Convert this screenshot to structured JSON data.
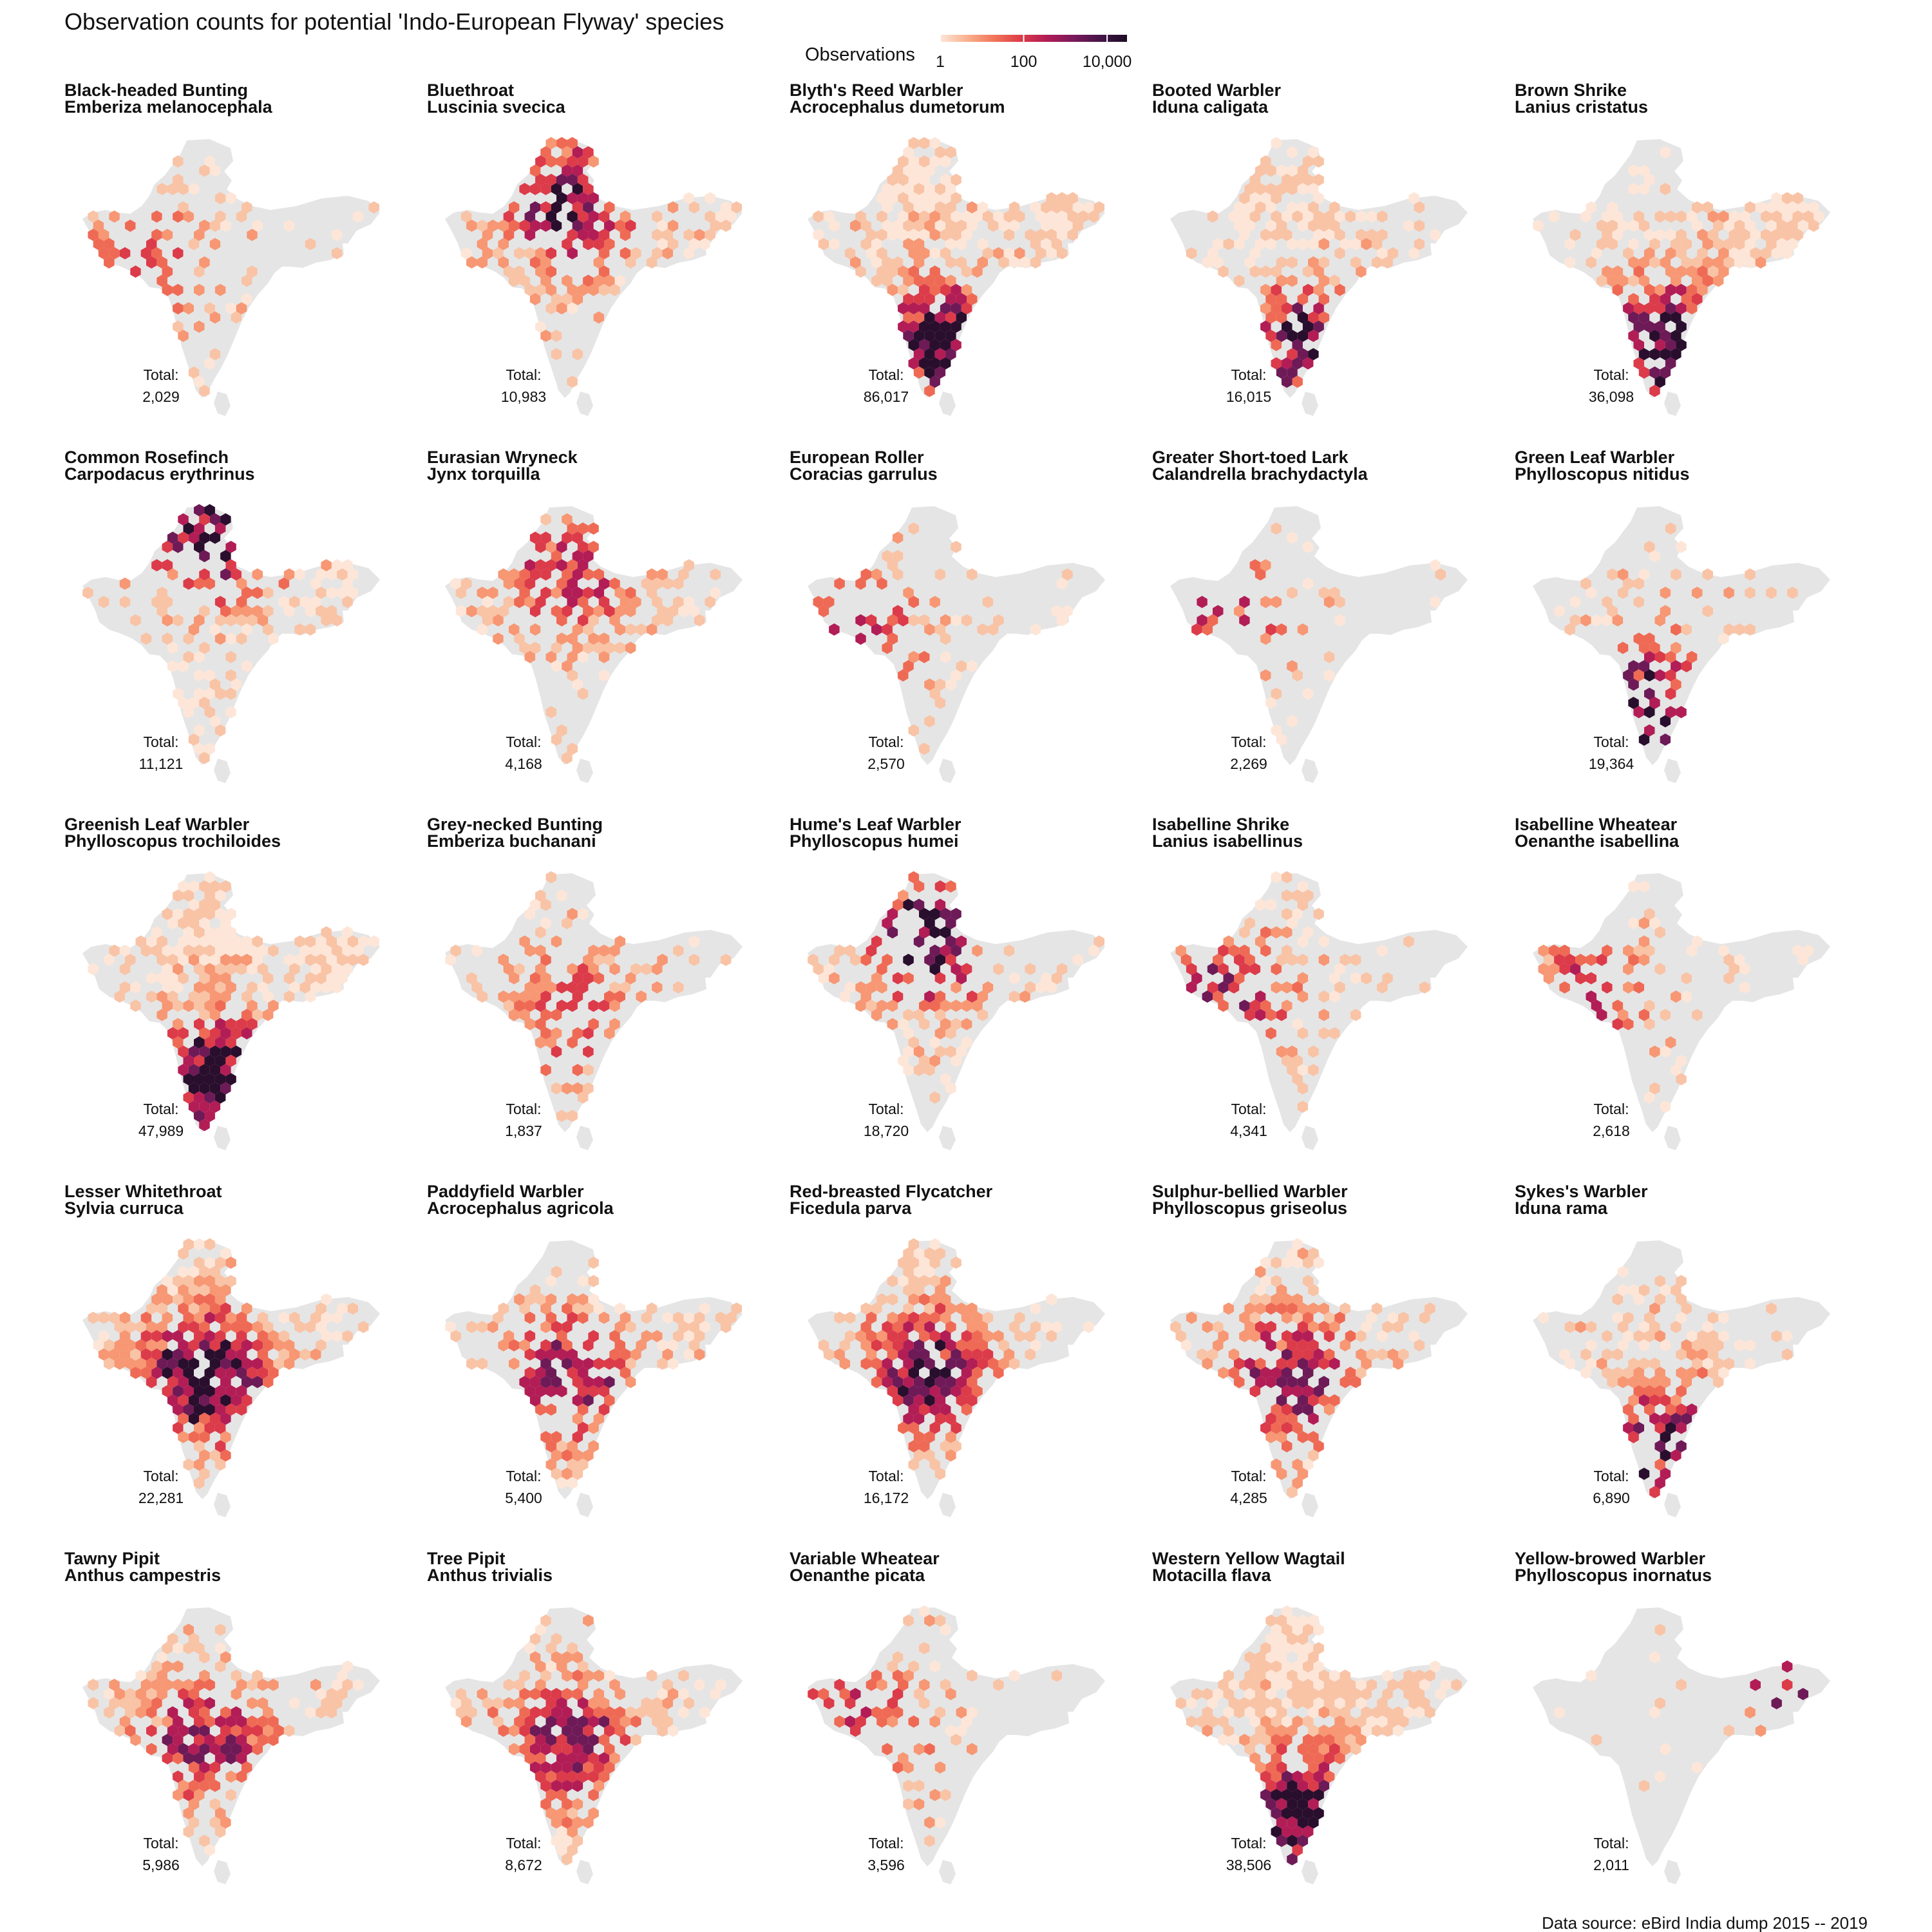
{
  "title": "Observation counts for potential 'Indo-European Flyway' species",
  "caption": "Data source: eBird India dump 2015 -- 2019",
  "legend": {
    "title": "Observations",
    "scale": "log10",
    "ticks": [
      "1",
      "100",
      "10,000"
    ],
    "tick_values": [
      1,
      100,
      10000
    ],
    "range": [
      1,
      30000
    ],
    "colors": [
      "#fde6d8",
      "#f9b18f",
      "#f2765a",
      "#dd3d48",
      "#b11c55",
      "#7a1a5c",
      "#451447",
      "#1a0d25"
    ]
  },
  "colors": {
    "land": "#e5e5e5",
    "background": "#ffffff"
  },
  "total_prefix": "Total:",
  "chart_data": {
    "type": "heatmap",
    "description_kind": "faceted hexbin map of observation counts",
    "panels": [
      {
        "common": "Black-headed Bunting",
        "scientific": "Emberiza melanocephala",
        "total": 2029,
        "total_label": "2,029",
        "focus": "west",
        "max_level": 4,
        "coverage": 0.35,
        "extra": []
      },
      {
        "common": "Bluethroat",
        "scientific": "Luscinia svecica",
        "total": 10983,
        "total_label": "10,983",
        "focus": "north",
        "max_level": 7,
        "coverage": 0.6,
        "extra": [
          "northeast"
        ]
      },
      {
        "common": "Blyth's Reed Warbler",
        "scientific": "Acrocephalus dumetorum",
        "total": 86017,
        "total_label": "86,017",
        "focus": "south",
        "max_level": 8,
        "coverage": 0.8,
        "extra": [
          "north",
          "northeast"
        ]
      },
      {
        "common": "Booted Warbler",
        "scientific": "Iduna caligata",
        "total": 16015,
        "total_label": "16,015",
        "focus": "south",
        "max_level": 7,
        "coverage": 0.65,
        "extra": [
          "north"
        ]
      },
      {
        "common": "Brown Shrike",
        "scientific": "Lanius cristatus",
        "total": 36098,
        "total_label": "36,098",
        "focus": "south",
        "max_level": 8,
        "coverage": 0.7,
        "extra": [
          "northeast",
          "east"
        ]
      },
      {
        "common": "Common Rosefinch",
        "scientific": "Carpodacus erythrinus",
        "total": 11121,
        "total_label": "11,121",
        "focus": "himalaya",
        "max_level": 7,
        "coverage": 0.5,
        "extra": [
          "south",
          "northeast"
        ]
      },
      {
        "common": "Eurasian Wryneck",
        "scientific": "Jynx torquilla",
        "total": 4168,
        "total_label": "4,168",
        "focus": "north",
        "max_level": 5,
        "coverage": 0.55,
        "extra": [
          "east"
        ]
      },
      {
        "common": "European Roller",
        "scientific": "Coracias garrulus",
        "total": 2570,
        "total_label": "2,570",
        "focus": "west",
        "max_level": 5,
        "coverage": 0.35,
        "extra": []
      },
      {
        "common": "Greater Short-toed Lark",
        "scientific": "Calandrella brachydactyla",
        "total": 2269,
        "total_label": "2,269",
        "focus": "west",
        "max_level": 5,
        "coverage": 0.2,
        "extra": []
      },
      {
        "common": "Green Leaf Warbler",
        "scientific": "Phylloscopus nitidus",
        "total": 19364,
        "total_label": "19,364",
        "focus": "southwest",
        "max_level": 8,
        "coverage": 0.35,
        "extra": []
      },
      {
        "common": "Greenish Leaf Warbler",
        "scientific": "Phylloscopus trochiloides",
        "total": 47989,
        "total_label": "47,989",
        "focus": "south",
        "max_level": 8,
        "coverage": 0.8,
        "extra": [
          "north",
          "northeast"
        ]
      },
      {
        "common": "Grey-necked Bunting",
        "scientific": "Emberiza buchanani",
        "total": 1837,
        "total_label": "1,837",
        "focus": "center",
        "max_level": 4,
        "coverage": 0.4,
        "extra": []
      },
      {
        "common": "Hume's Leaf Warbler",
        "scientific": "Phylloscopus humei",
        "total": 18720,
        "total_label": "18,720",
        "focus": "north",
        "max_level": 8,
        "coverage": 0.5,
        "extra": [
          "center"
        ]
      },
      {
        "common": "Isabelline Shrike",
        "scientific": "Lanius isabellinus",
        "total": 4341,
        "total_label": "4,341",
        "focus": "west",
        "max_level": 6,
        "coverage": 0.45,
        "extra": [
          "north"
        ]
      },
      {
        "common": "Isabelline Wheatear",
        "scientific": "Oenanthe isabellina",
        "total": 2618,
        "total_label": "2,618",
        "focus": "west",
        "max_level": 5,
        "coverage": 0.35,
        "extra": []
      },
      {
        "common": "Lesser Whitethroat",
        "scientific": "Sylvia curruca",
        "total": 22281,
        "total_label": "22,281",
        "focus": "center",
        "max_level": 8,
        "coverage": 0.75,
        "extra": [
          "north",
          "west"
        ]
      },
      {
        "common": "Paddyfield Warbler",
        "scientific": "Acrocephalus agricola",
        "total": 5400,
        "total_label": "5,400",
        "focus": "center",
        "max_level": 6,
        "coverage": 0.55,
        "extra": [
          "south",
          "northeast"
        ]
      },
      {
        "common": "Red-breasted Flycatcher",
        "scientific": "Ficedula parva",
        "total": 16172,
        "total_label": "16,172",
        "focus": "center",
        "max_level": 7,
        "coverage": 0.7,
        "extra": [
          "north"
        ]
      },
      {
        "common": "Sulphur-bellied Warbler",
        "scientific": "Phylloscopus griseolus",
        "total": 4285,
        "total_label": "4,285",
        "focus": "center",
        "max_level": 6,
        "coverage": 0.6,
        "extra": [
          "north"
        ]
      },
      {
        "common": "Sykes's Warbler",
        "scientific": "Iduna rama",
        "total": 6890,
        "total_label": "6,890",
        "focus": "south",
        "max_level": 7,
        "coverage": 0.55,
        "extra": [
          "center"
        ]
      },
      {
        "common": "Tawny Pipit",
        "scientific": "Anthus campestris",
        "total": 5986,
        "total_label": "5,986",
        "focus": "center",
        "max_level": 6,
        "coverage": 0.6,
        "extra": [
          "west"
        ]
      },
      {
        "common": "Tree Pipit",
        "scientific": "Anthus trivialis",
        "total": 8672,
        "total_label": "8,672",
        "focus": "center",
        "max_level": 6,
        "coverage": 0.7,
        "extra": [
          "south"
        ]
      },
      {
        "common": "Variable Wheatear",
        "scientific": "Oenanthe picata",
        "total": 3596,
        "total_label": "3,596",
        "focus": "west",
        "max_level": 5,
        "coverage": 0.3,
        "extra": []
      },
      {
        "common": "Western Yellow Wagtail",
        "scientific": "Motacilla flava",
        "total": 38506,
        "total_label": "38,506",
        "focus": "south",
        "max_level": 8,
        "coverage": 0.8,
        "extra": [
          "north",
          "east"
        ]
      },
      {
        "common": "Yellow-browed Warbler",
        "scientific": "Phylloscopus inornatus",
        "total": 2011,
        "total_label": "2,011",
        "focus": "northeast",
        "max_level": 6,
        "coverage": 0.15,
        "extra": []
      }
    ]
  }
}
